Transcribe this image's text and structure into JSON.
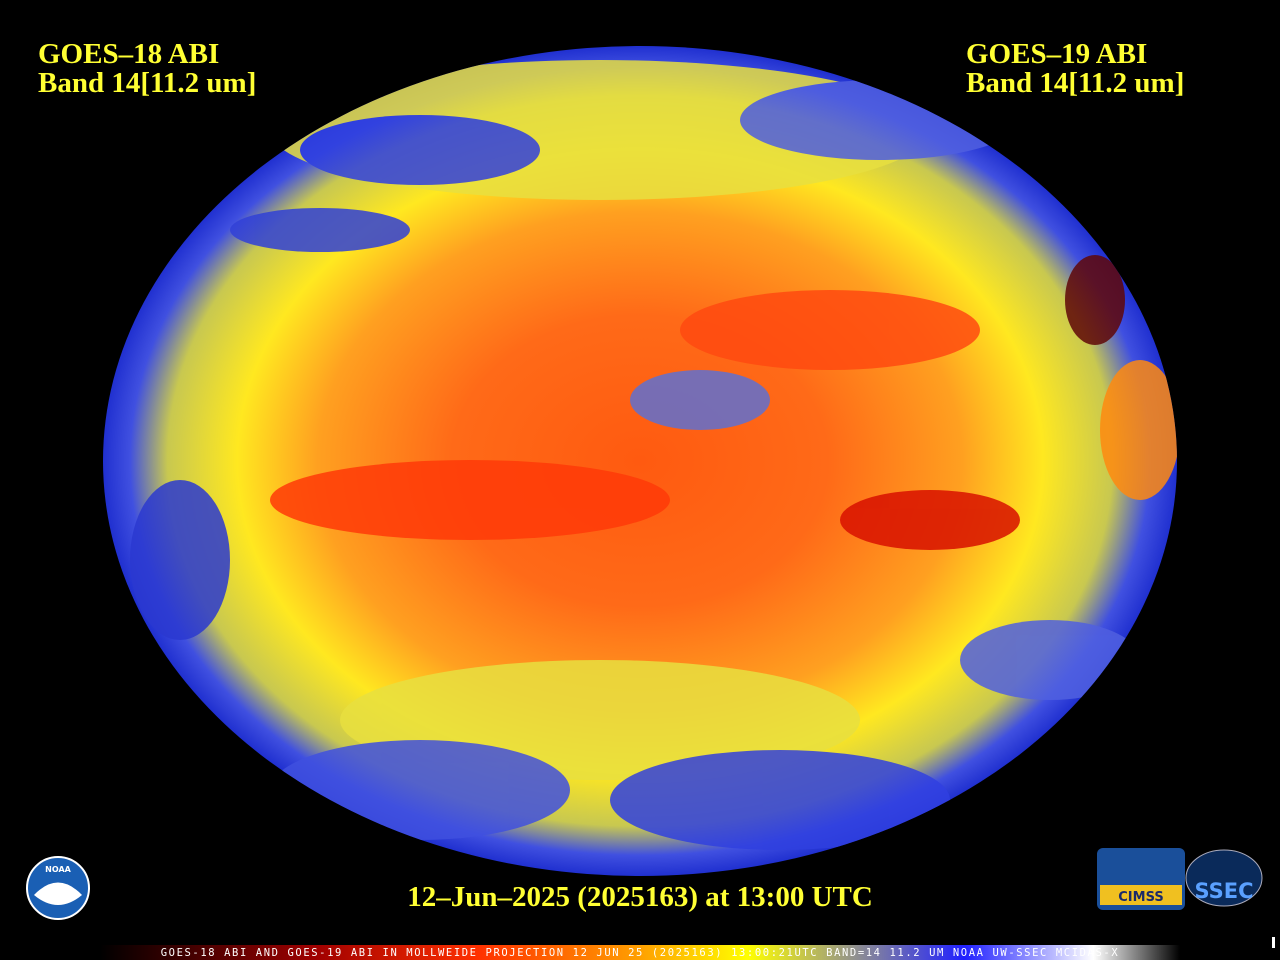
{
  "header": {
    "left": {
      "satellite": "GOES–18 ABI",
      "band": "Band 14[11.2 um]"
    },
    "right": {
      "satellite": "GOES–19 ABI",
      "band": "Band 14[11.2 um]"
    }
  },
  "timestamp": "12–Jun–2025 (2025163) at 13:00 UTC",
  "footer": "GOES-18 ABI AND GOES-19 ABI IN MOLLWEIDE PROJECTION 12 JUN 25 (2025163) 13:00:21UTC BAND=14 11.2 UM NOAA UW-SSEC MCIDAS-X",
  "logos": {
    "noaa": "NOAA",
    "cimss": "CIMSS",
    "ssec": "SSEC"
  }
}
